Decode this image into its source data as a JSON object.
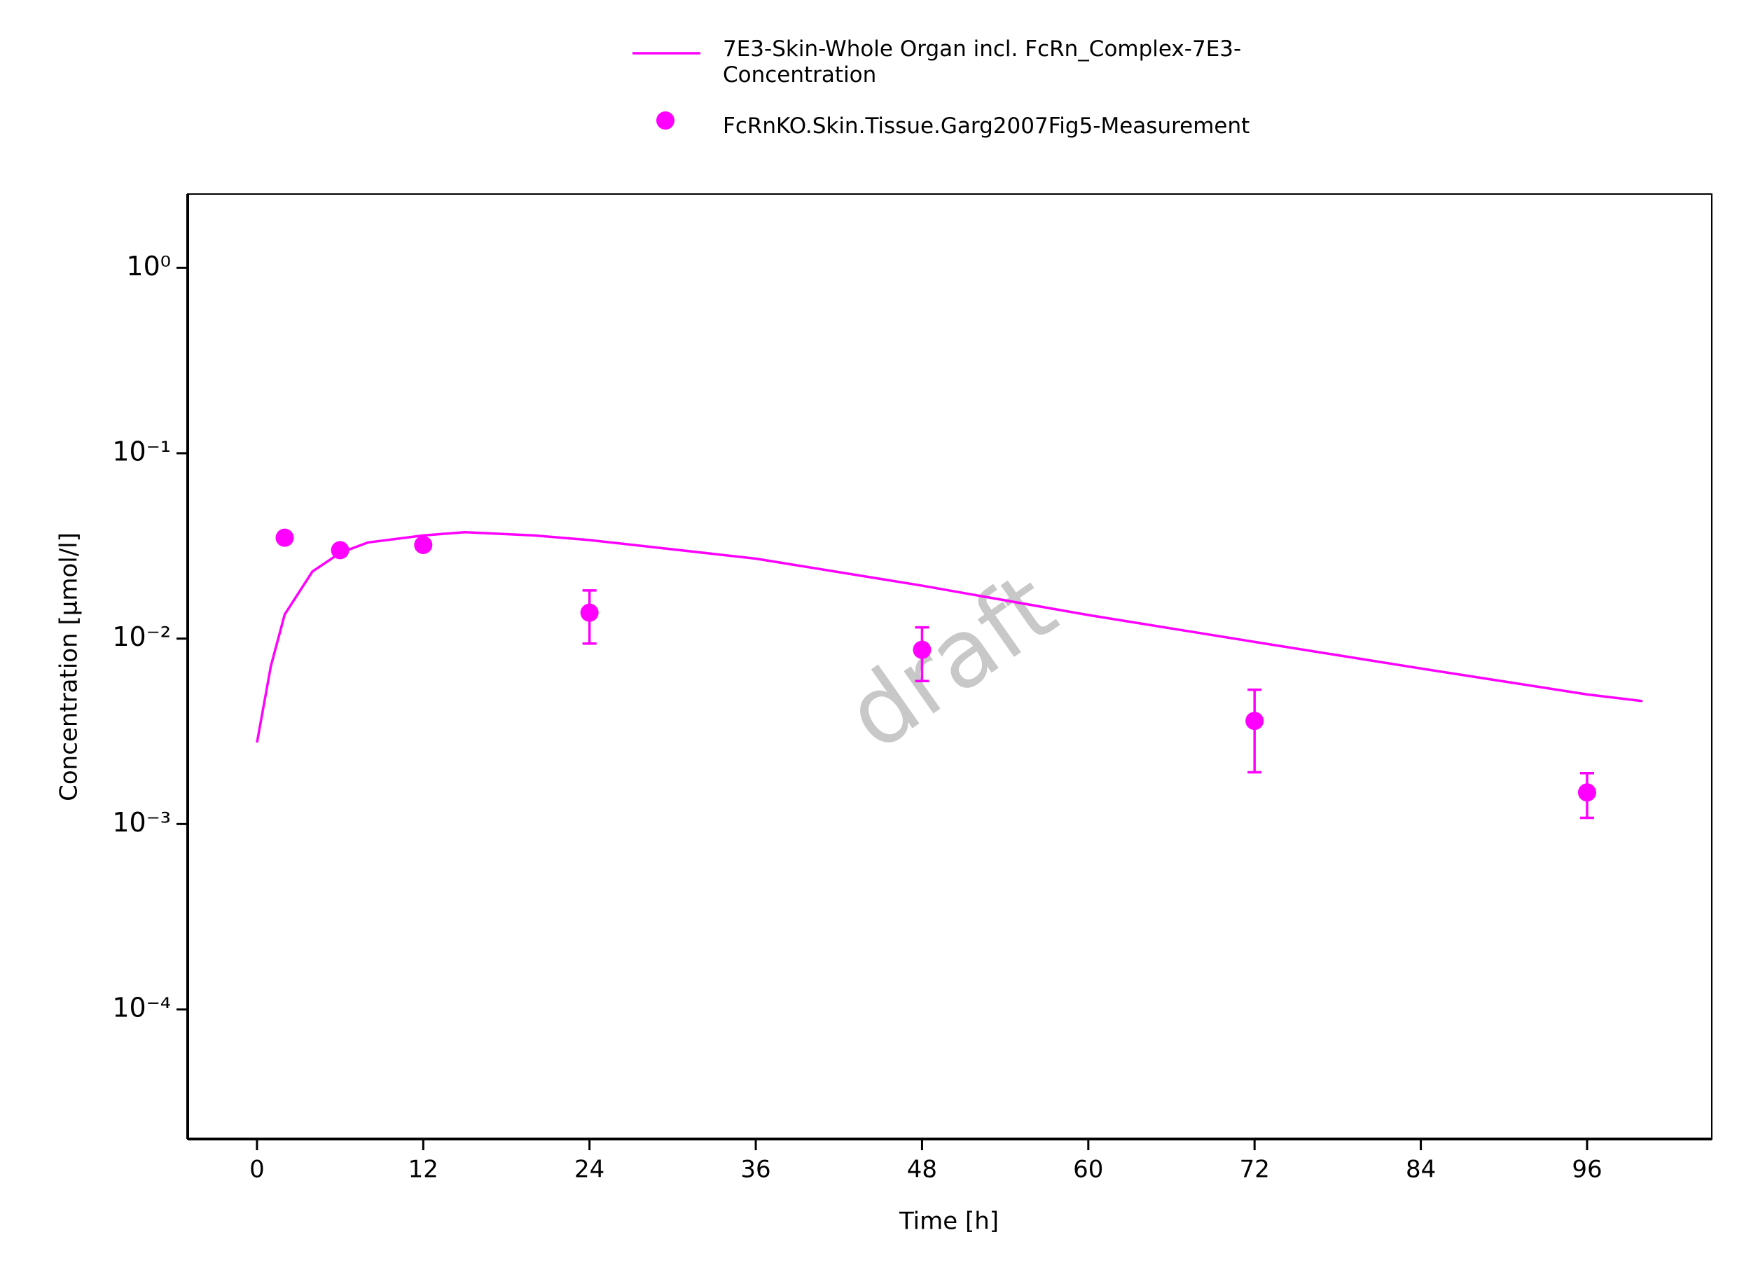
{
  "chart_data": {
    "type": "line",
    "x_label": "Time [h]",
    "y_label": "Concentration [µmol/l]",
    "watermark": "draft",
    "log_y": true,
    "legend_position": "top",
    "xlim": [
      -5,
      105
    ],
    "xticks": [
      0,
      12,
      24,
      36,
      48,
      60,
      72,
      84,
      96
    ],
    "ylim": [
      2e-05,
      2.5
    ],
    "yticks": [
      {
        "value": 1,
        "label": "10⁰"
      },
      {
        "value": 0.1,
        "label": "10⁻¹"
      },
      {
        "value": 0.01,
        "label": "10⁻²"
      },
      {
        "value": 0.001,
        "label": "10⁻³"
      },
      {
        "value": 0.0001,
        "label": "10⁻⁴"
      }
    ],
    "series": [
      {
        "name": "7E3-Skin-Whole Organ incl. FcRn_Complex-7E3-Concentration",
        "color": "#ff00ff",
        "kind": "line",
        "x": [
          0,
          1,
          2,
          4,
          6,
          8,
          12,
          15,
          20,
          24,
          36,
          48,
          60,
          72,
          84,
          96,
          100
        ],
        "values": [
          0.00275,
          0.0071,
          0.0135,
          0.023,
          0.029,
          0.033,
          0.036,
          0.0375,
          0.036,
          0.034,
          0.027,
          0.0193,
          0.0134,
          0.0096,
          0.0069,
          0.005,
          0.0046
        ]
      },
      {
        "name": "FcRnKO.Skin.Tissue.Garg2007Fig5-Measurement",
        "color": "#ff00ff",
        "kind": "scatter",
        "x": [
          2,
          6,
          12,
          24,
          48,
          72,
          96
        ],
        "values": [
          0.035,
          0.03,
          0.032,
          0.0138,
          0.0087,
          0.0036,
          0.00148
        ],
        "errors": [
          null,
          null,
          null,
          0.0044,
          0.0028,
          0.0017,
          0.0004
        ]
      }
    ]
  }
}
